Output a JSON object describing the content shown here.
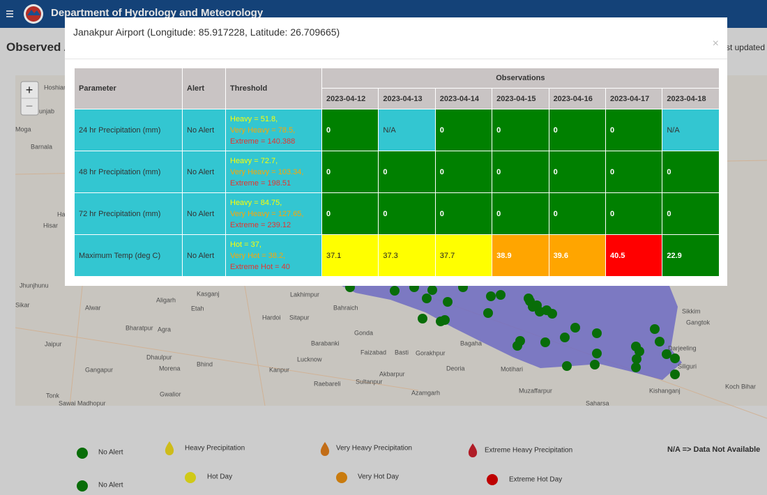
{
  "header": {
    "title": "Department of Hydrology and Meteorology"
  },
  "page": {
    "heading": "Observed Alert",
    "last_updated": "Last updated"
  },
  "map": {
    "zoom_in": "+",
    "zoom_out": "−",
    "labels": [
      "Hoshiarpur",
      "Punjab",
      "Moga",
      "Barnala",
      "Haryana",
      "Hisar",
      "Jhunjhunu",
      "Sikar",
      "Alwar",
      "Jaipur",
      "Aligarh",
      "Etah",
      "Kasganj",
      "Agra",
      "Bharatpur",
      "Dhaulpur",
      "Gangapur",
      "Morena",
      "Bhind",
      "Gwalior",
      "Tonk",
      "Sawai Madhopur",
      "Lakhimpur",
      "Bahraich",
      "Hardoi",
      "Sitapur",
      "Gonda",
      "Barabanki",
      "Lucknow",
      "Faizabad",
      "Basti",
      "Gorakhpur",
      "Bagaha",
      "Kanpur",
      "Deoria",
      "Raebareli",
      "Sultanpur",
      "Akbarpur",
      "Azamgarh",
      "Motihari",
      "Muzaffarpur",
      "Saharsa",
      "Kishanganj",
      "Siliguri",
      "Darjeeling",
      "Gangtok",
      "Sikkim",
      "Koch Bihar"
    ]
  },
  "modal": {
    "title": "Janakpur Airport (Longitude: 85.917228, Latitude: 26.709665)",
    "close": "×",
    "table": {
      "headers": [
        "Parameter",
        "Alert",
        "Threshold"
      ],
      "group_header": "Observations",
      "dates": [
        "2023-04-12",
        "2023-04-13",
        "2023-04-14",
        "2023-04-15",
        "2023-04-16",
        "2023-04-17",
        "2023-04-18"
      ],
      "rows": [
        {
          "parameter": "24 hr Precipitation (mm)",
          "alert": "No Alert",
          "thresholds": [
            {
              "text": "Heavy = 51.8,",
              "color": "#ffff00"
            },
            {
              "text": "Very Heavy = 78.5,",
              "color": "#ffa500"
            },
            {
              "text": "Extreme = 140.388",
              "color": "#e8322e"
            }
          ],
          "observations": [
            {
              "text": "0",
              "color": "#008000"
            },
            {
              "text": "N/A",
              "color": "#33c6d1"
            },
            {
              "text": "0",
              "color": "#008000"
            },
            {
              "text": "0",
              "color": "#008000"
            },
            {
              "text": "0",
              "color": "#008000"
            },
            {
              "text": "0",
              "color": "#008000"
            },
            {
              "text": "N/A",
              "color": "#33c6d1"
            }
          ]
        },
        {
          "parameter": "48 hr Precipitation (mm)",
          "alert": "No Alert",
          "thresholds": [
            {
              "text": "Heavy = 72.7,",
              "color": "#ffff00"
            },
            {
              "text": "Very Heavy = 103.34,",
              "color": "#ffa500"
            },
            {
              "text": "Extreme = 198.51",
              "color": "#e8322e"
            }
          ],
          "observations": [
            {
              "text": "0",
              "color": "#008000"
            },
            {
              "text": "0",
              "color": "#008000"
            },
            {
              "text": "0",
              "color": "#008000"
            },
            {
              "text": "0",
              "color": "#008000"
            },
            {
              "text": "0",
              "color": "#008000"
            },
            {
              "text": "0",
              "color": "#008000"
            },
            {
              "text": "0",
              "color": "#008000"
            }
          ]
        },
        {
          "parameter": "72 hr Precipitation (mm)",
          "alert": "No Alert",
          "thresholds": [
            {
              "text": "Heavy = 84.75,",
              "color": "#ffff00"
            },
            {
              "text": "Very Heavy = 127.65,",
              "color": "#ffa500"
            },
            {
              "text": "Extreme = 239.12",
              "color": "#e8322e"
            }
          ],
          "observations": [
            {
              "text": "0",
              "color": "#008000"
            },
            {
              "text": "0",
              "color": "#008000"
            },
            {
              "text": "0",
              "color": "#008000"
            },
            {
              "text": "0",
              "color": "#008000"
            },
            {
              "text": "0",
              "color": "#008000"
            },
            {
              "text": "0",
              "color": "#008000"
            },
            {
              "text": "0",
              "color": "#008000"
            }
          ]
        },
        {
          "parameter": "Maximum Temp (deg C)",
          "alert": "No Alert",
          "thresholds": [
            {
              "text": "Hot = 37,",
              "color": "#ffff00"
            },
            {
              "text": "Very Hot = 38.2,",
              "color": "#ffa500"
            },
            {
              "text": "Extreme Hot = 40",
              "color": "#e8322e"
            }
          ],
          "observations": [
            {
              "text": "37.1",
              "color": "#ffff00"
            },
            {
              "text": "37.3",
              "color": "#ffff00"
            },
            {
              "text": "37.7",
              "color": "#ffff00"
            },
            {
              "text": "38.9",
              "color": "#ffa500"
            },
            {
              "text": "39.6",
              "color": "#ffa500"
            },
            {
              "text": "40.5",
              "color": "#ff0000"
            },
            {
              "text": "22.9",
              "color": "#008000"
            }
          ]
        }
      ]
    }
  },
  "legend": {
    "items": [
      {
        "label": "No Alert",
        "color": "#0a7a0a",
        "shape": "circle"
      },
      {
        "label": "Heavy Precipitation",
        "color": "#e6d21e",
        "shape": "drop"
      },
      {
        "label": "Very Heavy Precipitation",
        "color": "#d97a1a",
        "shape": "drop"
      },
      {
        "label": "Extreme Heavy Precipitation",
        "color": "#c4202c",
        "shape": "drop"
      },
      {
        "label": "No Alert",
        "color": "#0a7a0a",
        "shape": "circle"
      },
      {
        "label": "Hot Day",
        "color": "#e8e01a",
        "shape": "circle"
      },
      {
        "label": "Very Hot Day",
        "color": "#e08a10",
        "shape": "circle"
      },
      {
        "label": "Extreme Hot Day",
        "color": "#d40000",
        "shape": "circle"
      }
    ],
    "note": "N/A => Data Not Available"
  }
}
